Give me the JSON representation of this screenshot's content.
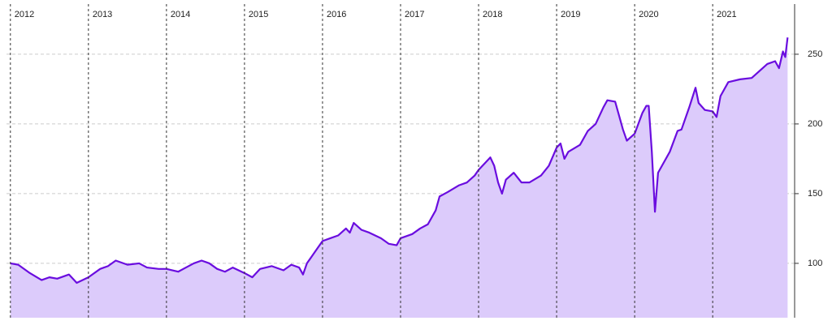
{
  "chart_data": {
    "type": "area-line",
    "x": [
      2012.0,
      2012.1,
      2012.25,
      2012.4,
      2012.5,
      2012.6,
      2012.75,
      2012.85,
      2013.0,
      2013.15,
      2013.25,
      2013.35,
      2013.5,
      2013.65,
      2013.75,
      2013.9,
      2014.0,
      2014.15,
      2014.25,
      2014.35,
      2014.45,
      2014.55,
      2014.65,
      2014.75,
      2014.85,
      2015.0,
      2015.1,
      2015.2,
      2015.35,
      2015.5,
      2015.6,
      2015.7,
      2015.75,
      2015.8,
      2015.9,
      2016.0,
      2016.1,
      2016.2,
      2016.3,
      2016.35,
      2016.4,
      2016.5,
      2016.6,
      2016.75,
      2016.85,
      2016.95,
      2017.0,
      2017.15,
      2017.25,
      2017.35,
      2017.45,
      2017.5,
      2017.6,
      2017.75,
      2017.85,
      2017.95,
      2018.0,
      2018.05,
      2018.1,
      2018.15,
      2018.2,
      2018.25,
      2018.3,
      2018.35,
      2018.45,
      2018.55,
      2018.65,
      2018.8,
      2018.9,
      2019.0,
      2019.05,
      2019.1,
      2019.15,
      2019.3,
      2019.4,
      2019.5,
      2019.6,
      2019.65,
      2019.75,
      2019.8,
      2019.85,
      2019.9,
      2020.0,
      2020.1,
      2020.15,
      2020.18,
      2020.22,
      2020.26,
      2020.3,
      2020.35,
      2020.45,
      2020.55,
      2020.6,
      2020.7,
      2020.78,
      2020.82,
      2020.9,
      2021.0,
      2021.05,
      2021.1,
      2021.2,
      2021.35,
      2021.5,
      2021.6,
      2021.7,
      2021.8,
      2021.85,
      2021.9,
      2021.93,
      2021.96
    ],
    "series": [
      {
        "color": "#6a0ddf",
        "fill": "#dccbfb",
        "values": [
          100,
          99,
          93,
          88,
          90,
          89,
          92,
          86,
          90,
          96,
          98,
          102,
          99,
          100,
          97,
          96,
          96,
          94,
          97,
          100,
          102,
          100,
          96,
          94,
          97,
          93,
          90,
          96,
          98,
          95,
          99,
          97,
          92,
          100,
          108,
          116,
          118,
          120,
          125,
          122,
          129,
          124,
          122,
          118,
          114,
          113,
          118,
          121,
          125,
          128,
          138,
          148,
          151,
          156,
          158,
          163,
          167,
          170,
          173,
          176,
          170,
          158,
          150,
          160,
          165,
          158,
          158,
          163,
          170,
          183,
          186,
          175,
          180,
          185,
          195,
          200,
          212,
          217,
          216,
          206,
          196,
          188,
          193,
          208,
          213,
          213,
          180,
          137,
          165,
          170,
          180,
          195,
          196,
          212,
          226,
          215,
          210,
          209,
          205,
          220,
          230,
          232,
          233,
          238,
          243,
          245,
          240,
          252,
          248,
          262
        ]
      }
    ],
    "xlim": [
      2011.95,
      2022.05
    ],
    "xticks": [
      2012,
      2013,
      2014,
      2015,
      2016,
      2017,
      2018,
      2019,
      2020,
      2021
    ],
    "ylim": [
      61,
      286
    ],
    "yticks": [
      100,
      150,
      200,
      250
    ],
    "grid": true
  }
}
